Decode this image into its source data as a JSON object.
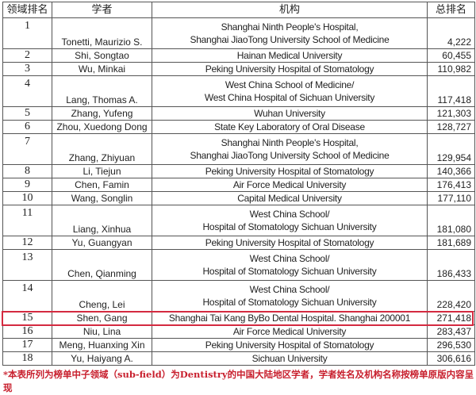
{
  "headers": {
    "rank": "领域排名",
    "scholar": "学者",
    "institution": "机构",
    "total": "总排名"
  },
  "rows": [
    {
      "rank": "1",
      "scholar": "Tonetti, Maurizio S.",
      "inst1": "Shanghai Ninth People's Hospital,",
      "inst2": "Shanghai JiaoTong University School of Medicine",
      "total": "4,222"
    },
    {
      "rank": "2",
      "scholar": "Shi, Songtao",
      "inst1": "Hainan Medical University",
      "total": "60,455"
    },
    {
      "rank": "3",
      "scholar": "Wu, Minkai",
      "inst1": "Peking University Hospital of Stomatology",
      "total": "110,982"
    },
    {
      "rank": "4",
      "scholar": "Lang, Thomas A.",
      "inst1": "West China School of Medicine/",
      "inst2": "West China Hospital of Sichuan University",
      "total": "117,418"
    },
    {
      "rank": "5",
      "scholar": "Zhang, Yufeng",
      "inst1": "Wuhan University",
      "total": "121,303"
    },
    {
      "rank": "6",
      "scholar": "Zhou, Xuedong Dong",
      "inst1": "State Key Laboratory of Oral Disease",
      "total": "128,727"
    },
    {
      "rank": "7",
      "scholar": "Zhang, Zhiyuan",
      "inst1": "Shanghai Ninth People's Hospital,",
      "inst2": "Shanghai JiaoTong University School of Medicine",
      "total": "129,954"
    },
    {
      "rank": "8",
      "scholar": "Li, Tiejun",
      "inst1": "Peking University Hospital of Stomatology",
      "total": "140,366"
    },
    {
      "rank": "9",
      "scholar": "Chen, Famin",
      "inst1": "Air Force Medical University",
      "total": "176,413"
    },
    {
      "rank": "10",
      "scholar": "Wang, Songlin",
      "inst1": "Capital Medical University",
      "total": "177,110"
    },
    {
      "rank": "11",
      "scholar": "Liang, Xinhua",
      "inst1": "West China School/",
      "inst2": "Hospital of Stomatology Sichuan University",
      "total": "181,080"
    },
    {
      "rank": "12",
      "scholar": "Yu, Guangyan",
      "inst1": "Peking University Hospital of Stomatology",
      "total": "181,689"
    },
    {
      "rank": "13",
      "scholar": "Chen, Qianming",
      "inst1": "West China School/",
      "inst2": "Hospital of Stomatology Sichuan University",
      "total": "186,433"
    },
    {
      "rank": "14",
      "scholar": "Cheng, Lei",
      "inst1": "West China School/",
      "inst2": "Hospital of Stomatology Sichuan University",
      "total": "228,420"
    },
    {
      "rank": "15",
      "scholar": "Shen, Gang",
      "inst1": "Shanghai Tai Kang ByBo Dental Hospital. Shanghai 200001",
      "total": "271,418"
    },
    {
      "rank": "16",
      "scholar": "Niu, Lina",
      "inst1": "Air Force Medical University",
      "total": "283,437"
    },
    {
      "rank": "17",
      "scholar": "Meng, Huanxing Xin",
      "inst1": "Peking University Hospital of Stomatology",
      "total": "296,530"
    },
    {
      "rank": "18",
      "scholar": "Yu, Haiyang A.",
      "inst1": "Sichuan University",
      "total": "306,616"
    }
  ],
  "highlight_rank": "15",
  "highlight_color": "#d42a40",
  "footnote": "*本表所列为榜单中子领域（sub-field）为Dentistry的中国大陆地区学者，学者姓名及机构名称按榜单原版内容呈现"
}
